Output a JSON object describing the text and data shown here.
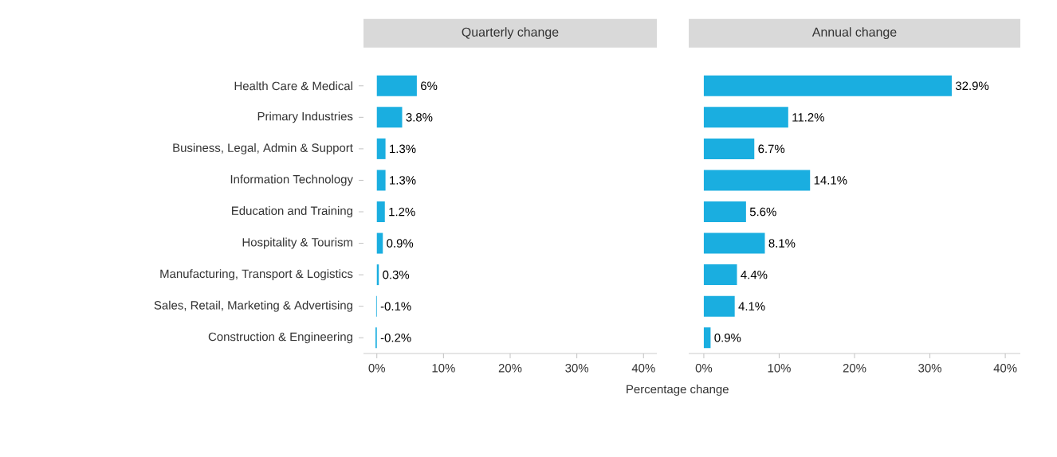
{
  "chart_data": [
    {
      "type": "bar",
      "orientation": "horizontal",
      "title": "Quarterly change",
      "xlabel": "Percentage change",
      "color": "#1aaee0",
      "categories": [
        "Health Care & Medical",
        "Primary Industries",
        "Business, Legal, Admin & Support",
        "Information Technology",
        "Education and Training",
        "Hospitality & Tourism",
        "Manufacturing, Transport & Logistics",
        "Sales, Retail, Marketing & Advertising",
        "Construction & Engineering"
      ],
      "values": [
        6,
        3.8,
        1.3,
        1.3,
        1.2,
        0.9,
        0.3,
        -0.1,
        -0.2
      ],
      "value_labels": [
        "6%",
        "3.8%",
        "1.3%",
        "1.3%",
        "1.2%",
        "0.9%",
        "0.3%",
        "-0.1%",
        "-0.2%"
      ],
      "xlim": [
        -2,
        42
      ],
      "xticks": [
        {
          "value": 0,
          "label": "0%"
        },
        {
          "value": 10,
          "label": "10%"
        },
        {
          "value": 20,
          "label": "20%"
        },
        {
          "value": 30,
          "label": "30%"
        },
        {
          "value": 40,
          "label": "40%"
        }
      ]
    },
    {
      "type": "bar",
      "orientation": "horizontal",
      "title": "Annual change",
      "color": "#1aaee0",
      "tick_labels": "x",
      "categories": [
        null,
        null,
        null,
        null,
        null,
        null,
        null,
        null,
        null
      ],
      "values": [
        32.9,
        11.2,
        6.7,
        14.1,
        5.6,
        8.1,
        4.4,
        4.1,
        0.9
      ],
      "value_labels": [
        "32.9%",
        "11.2%",
        "6.7%",
        "14.1%",
        "5.6%",
        "8.1%",
        "4.4%",
        "4.1%",
        "0.9%"
      ],
      "xlim": [
        -2,
        42
      ],
      "xticks": [
        {
          "value": 0,
          "label": "0%"
        },
        {
          "value": 10,
          "label": "10%"
        },
        {
          "value": 20,
          "label": "20%"
        },
        {
          "value": 30,
          "label": "30%"
        },
        {
          "value": 40,
          "label": "40%"
        }
      ]
    }
  ]
}
